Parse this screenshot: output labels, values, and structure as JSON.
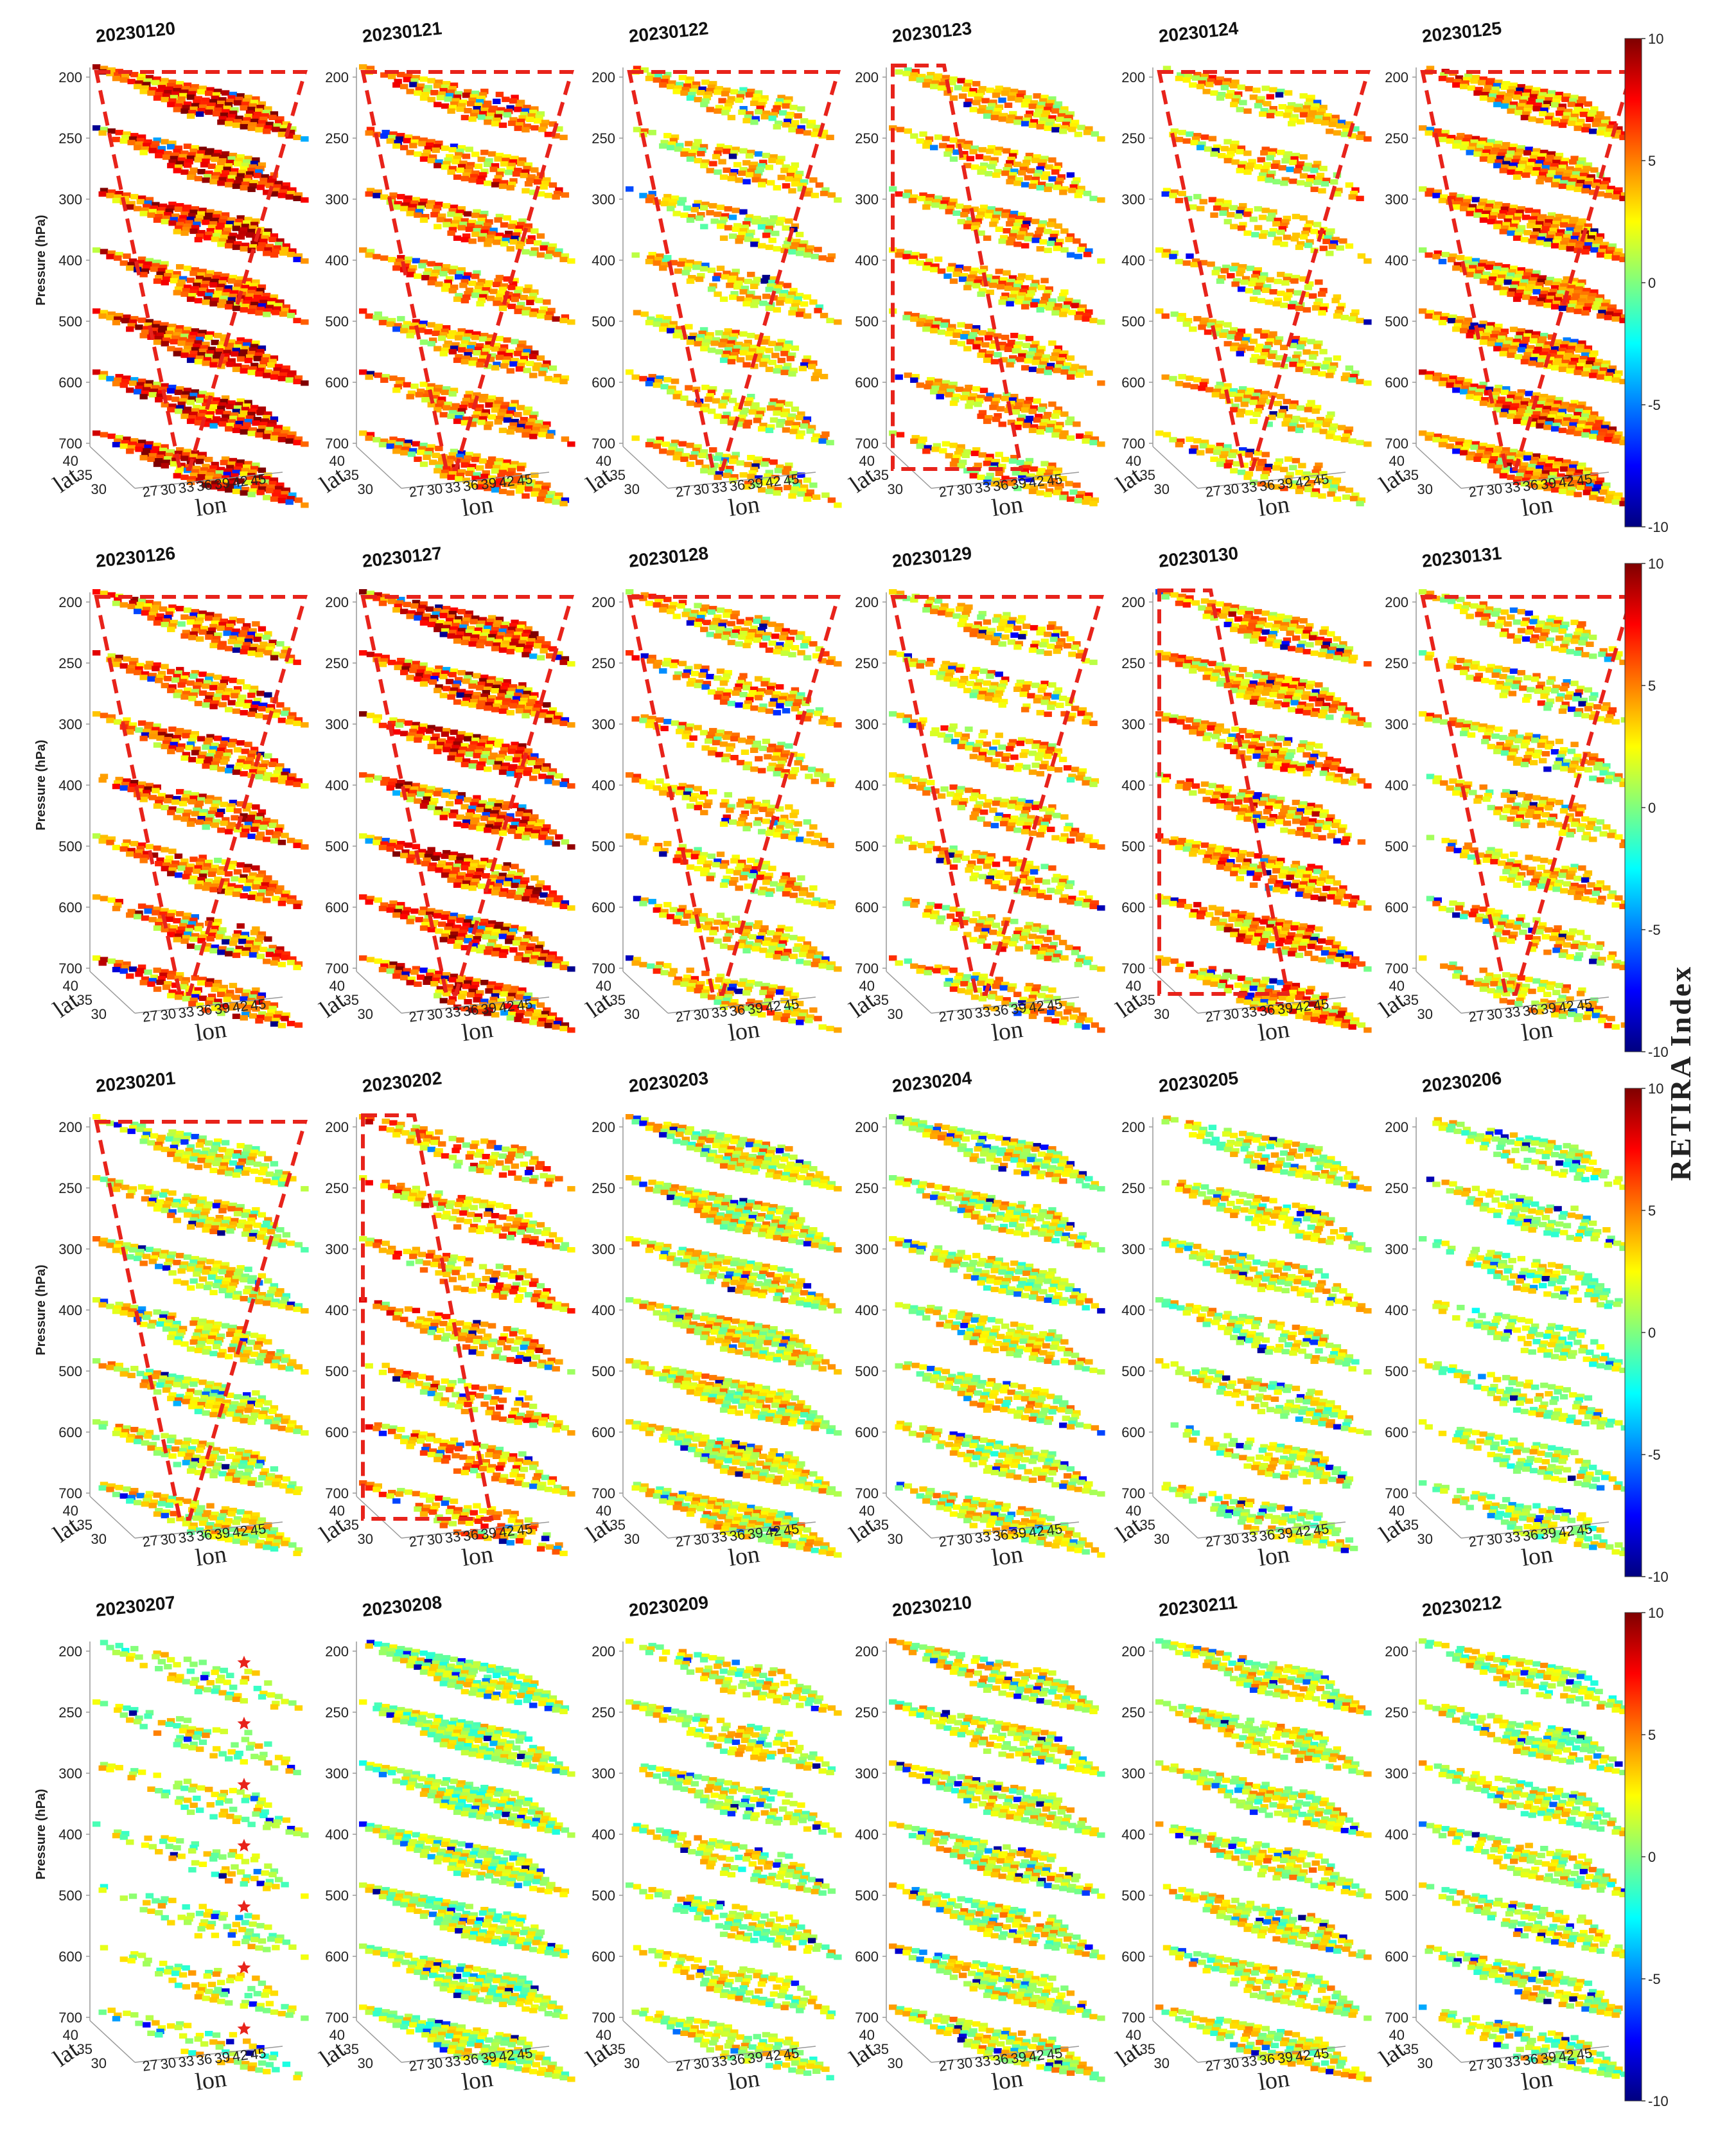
{
  "chart_data": {
    "type": "heatmap",
    "subtype": "3d-stacked-pressure-level-slices",
    "layout": {
      "rows": 4,
      "cols": 6
    },
    "panels": [
      {
        "date": "20230120",
        "intensity": 0.88,
        "coverage": 0.78,
        "outline": "inverted-trapezoid"
      },
      {
        "date": "20230121",
        "intensity": 0.62,
        "coverage": 0.62,
        "outline": "inverted-trapezoid"
      },
      {
        "date": "20230122",
        "intensity": 0.4,
        "coverage": 0.52,
        "outline": "inverted-trapezoid"
      },
      {
        "date": "20230123",
        "intensity": 0.5,
        "coverage": 0.58,
        "outline": "parallelogram"
      },
      {
        "date": "20230124",
        "intensity": 0.45,
        "coverage": 0.45,
        "outline": "inverted-trapezoid"
      },
      {
        "date": "20230125",
        "intensity": 0.66,
        "coverage": 0.82,
        "outline": "inverted-trapezoid"
      },
      {
        "date": "20230126",
        "intensity": 0.7,
        "coverage": 0.66,
        "outline": "inverted-trapezoid"
      },
      {
        "date": "20230127",
        "intensity": 0.82,
        "coverage": 0.74,
        "outline": "inverted-trapezoid"
      },
      {
        "date": "20230128",
        "intensity": 0.48,
        "coverage": 0.52,
        "outline": "inverted-trapezoid"
      },
      {
        "date": "20230129",
        "intensity": 0.48,
        "coverage": 0.5,
        "outline": "inverted-trapezoid"
      },
      {
        "date": "20230130",
        "intensity": 0.6,
        "coverage": 0.68,
        "outline": "parallelogram"
      },
      {
        "date": "20230131",
        "intensity": 0.42,
        "coverage": 0.5,
        "outline": "inverted-trapezoid"
      },
      {
        "date": "20230201",
        "intensity": 0.3,
        "coverage": 0.66,
        "outline": "inverted-trapezoid"
      },
      {
        "date": "20230202",
        "intensity": 0.55,
        "coverage": 0.5,
        "outline": "parallelogram"
      },
      {
        "date": "20230203",
        "intensity": 0.3,
        "coverage": 0.78,
        "outline": "none"
      },
      {
        "date": "20230204",
        "intensity": 0.26,
        "coverage": 0.62,
        "outline": "none"
      },
      {
        "date": "20230205",
        "intensity": 0.26,
        "coverage": 0.52,
        "outline": "none"
      },
      {
        "date": "20230206",
        "intensity": 0.16,
        "coverage": 0.46,
        "outline": "none"
      },
      {
        "date": "20230207",
        "intensity": 0.2,
        "coverage": 0.28,
        "outline": "none"
      },
      {
        "date": "20230208",
        "intensity": 0.14,
        "coverage": 0.74,
        "outline": "none"
      },
      {
        "date": "20230209",
        "intensity": 0.22,
        "coverage": 0.52,
        "outline": "none"
      },
      {
        "date": "20230210",
        "intensity": 0.26,
        "coverage": 0.66,
        "outline": "none"
      },
      {
        "date": "20230211",
        "intensity": 0.26,
        "coverage": 0.62,
        "outline": "none"
      },
      {
        "date": "20230212",
        "intensity": 0.2,
        "coverage": 0.56,
        "outline": "none"
      }
    ],
    "pressure_levels": [
      200,
      250,
      300,
      400,
      500,
      600,
      700
    ],
    "y_axis_label": "Pressure (hPa)",
    "lat_ticks": [
      "40",
      "35",
      "30"
    ],
    "lat_label": "lat",
    "lon_ticks": [
      "27",
      "30",
      "33",
      "36",
      "39",
      "42",
      "45"
    ],
    "lon_label": "lon",
    "colorbar": {
      "label": "RETIRA Index",
      "min": -10,
      "max": 10,
      "ticks": [
        10,
        5,
        0,
        -5,
        -10
      ]
    },
    "colormap_stops": [
      "#00007f",
      "#0000ff",
      "#007fff",
      "#00ffff",
      "#7fff7f",
      "#ffff00",
      "#ff7f00",
      "#ff0000",
      "#7f0000"
    ],
    "outline_color": "#e8231b",
    "marker_color": "#e8231b",
    "marker_symbol": "star"
  }
}
